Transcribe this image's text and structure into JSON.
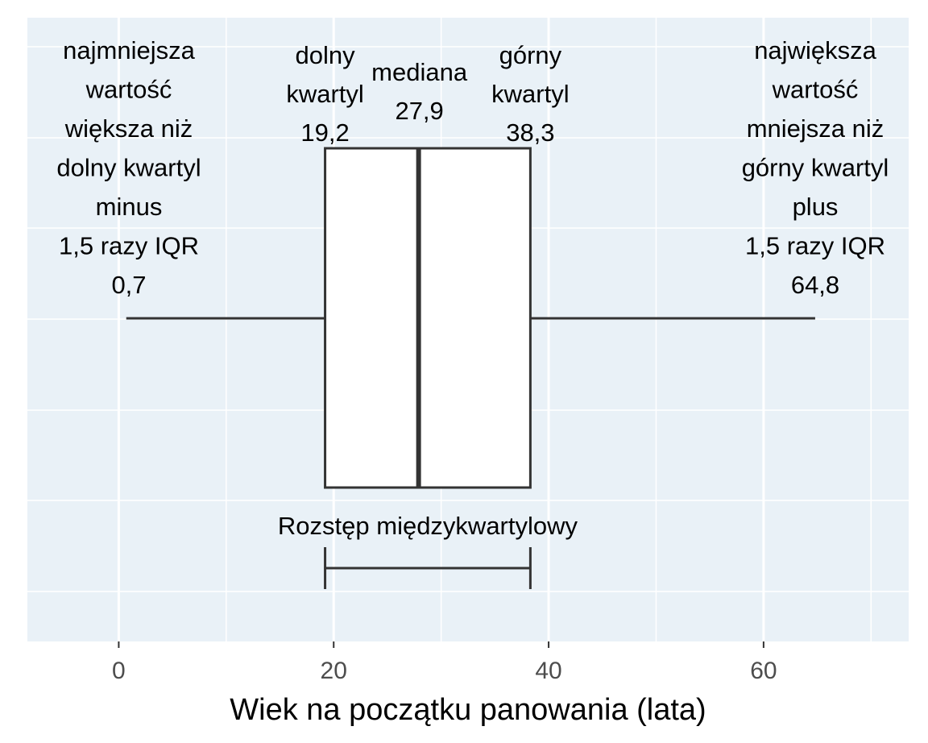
{
  "chart_data": {
    "type": "box",
    "xlabel": "Wiek na początku panowania (lata)",
    "xlim": [
      -8.5,
      73.5
    ],
    "x_ticks": [
      0,
      20,
      40,
      60
    ],
    "x_tick_labels": [
      "0",
      "20",
      "40",
      "60"
    ],
    "grid": true,
    "stats": {
      "whisker_low": 0.7,
      "q1": 19.2,
      "median": 27.9,
      "q3": 38.3,
      "whisker_high": 64.8
    },
    "annotations": {
      "whisker_low": [
        "najmniejsza",
        "wartość",
        "większa niż",
        "dolny kwartyl",
        "minus",
        "1,5 razy IQR",
        "0,7"
      ],
      "q1": [
        "dolny",
        "kwartyl",
        "19,2"
      ],
      "median": [
        "mediana",
        "27,9"
      ],
      "q3": [
        "górny",
        "kwartyl",
        "38,3"
      ],
      "whisker_high": [
        "największa",
        "wartość",
        "mniejsza niż",
        "górny kwartyl",
        "plus",
        "1,5 razy IQR",
        "64,8"
      ],
      "iqr": "Rozstęp międzykwartylowy"
    },
    "colors": {
      "panel": "#e9f1f7",
      "grid": "#ffffff",
      "box_fill": "#ffffff",
      "stroke": "#333333",
      "tick_label": "#4d4d4d",
      "text": "#000000"
    }
  }
}
